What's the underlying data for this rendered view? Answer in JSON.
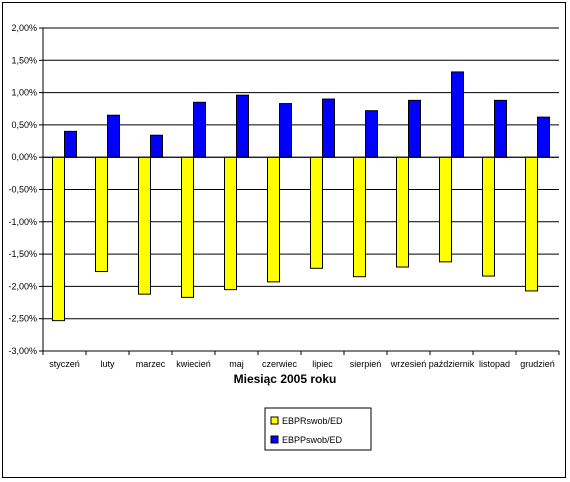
{
  "chart_data": {
    "type": "bar",
    "title": "",
    "xlabel": "Miesiąc 2005 roku",
    "ylabel": "",
    "ylim": [
      -3.0,
      2.0
    ],
    "y_ticks": [
      2.0,
      1.5,
      1.0,
      0.5,
      0.0,
      -0.5,
      -1.0,
      -1.5,
      -2.0,
      -2.5,
      -3.0
    ],
    "y_tick_labels": [
      "2,00%",
      "1,50%",
      "1,00%",
      "0,50%",
      "0,00%",
      "-0,50%",
      "-1,00%",
      "-1,50%",
      "-2,00%",
      "-2,50%",
      "-3,00%"
    ],
    "categories": [
      "styczeń",
      "luty",
      "marzec",
      "kwiecień",
      "maj",
      "czerwiec",
      "lipiec",
      "sierpień",
      "wrzesień",
      "październik",
      "listopad",
      "grudzień"
    ],
    "series": [
      {
        "name": "EBPRswob/ED",
        "color": "#ffff00",
        "values": [
          -2.53,
          -1.77,
          -2.12,
          -2.17,
          -2.05,
          -1.93,
          -1.72,
          -1.85,
          -1.7,
          -1.62,
          -1.84,
          -2.07
        ]
      },
      {
        "name": "EBPPswob/ED",
        "color": "#0000ff",
        "values": [
          0.4,
          0.65,
          0.34,
          0.85,
          0.96,
          0.83,
          0.9,
          0.72,
          0.88,
          1.32,
          0.88,
          0.62
        ]
      }
    ],
    "grid": true,
    "legend_position": "bottom-center"
  }
}
